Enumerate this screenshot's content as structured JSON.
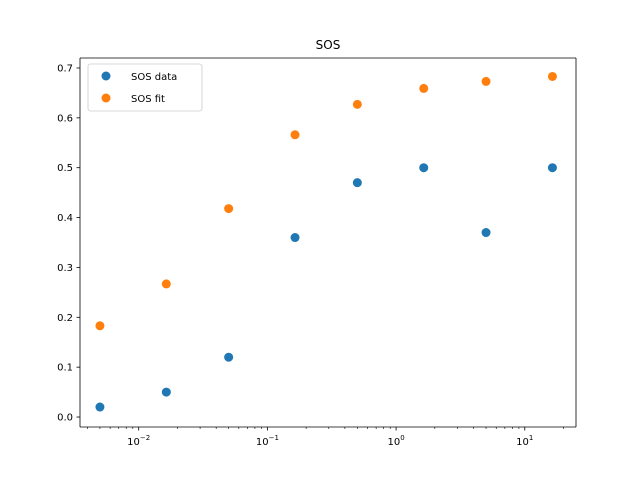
{
  "chart_data": {
    "type": "scatter",
    "title": "SOS",
    "xlabel": "",
    "ylabel": "",
    "xscale": "log",
    "xlim": [
      0.0035,
      25
    ],
    "ylim": [
      -0.02,
      0.72
    ],
    "xticks": [
      {
        "value": 0.01,
        "base": "10",
        "exp": "−2"
      },
      {
        "value": 0.1,
        "base": "10",
        "exp": "−1"
      },
      {
        "value": 1,
        "base": "10",
        "exp": "0"
      },
      {
        "value": 10,
        "base": "10",
        "exp": "1"
      }
    ],
    "yticks": [
      {
        "value": 0.0,
        "label": "0.0"
      },
      {
        "value": 0.1,
        "label": "0.1"
      },
      {
        "value": 0.2,
        "label": "0.2"
      },
      {
        "value": 0.3,
        "label": "0.3"
      },
      {
        "value": 0.4,
        "label": "0.4"
      },
      {
        "value": 0.5,
        "label": "0.5"
      },
      {
        "value": 0.6,
        "label": "0.6"
      },
      {
        "value": 0.7,
        "label": "0.7"
      }
    ],
    "legend": {
      "placement": "top-left"
    },
    "grid": false,
    "series": [
      {
        "name": "SOS data",
        "color": "#1f77b4",
        "x": [
          0.005,
          0.0164,
          0.05,
          0.164,
          0.5,
          1.64,
          5.0,
          16.4
        ],
        "y": [
          0.02,
          0.05,
          0.12,
          0.36,
          0.47,
          0.5,
          0.37,
          0.5
        ]
      },
      {
        "name": "SOS fit",
        "color": "#ff7f0e",
        "x": [
          0.005,
          0.0164,
          0.05,
          0.164,
          0.5,
          1.64,
          5.0,
          16.4
        ],
        "y": [
          0.183,
          0.267,
          0.418,
          0.566,
          0.627,
          0.659,
          0.673,
          0.683
        ]
      }
    ]
  }
}
